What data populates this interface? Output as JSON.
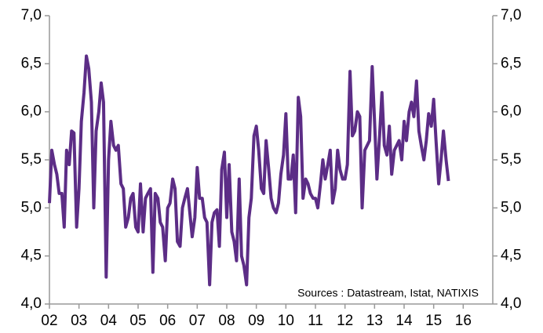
{
  "chart_data": {
    "type": "line",
    "annotation": "Sources : Datastream, Istat, NATIXIS",
    "x": [
      2002,
      2002.08,
      2002.17,
      2002.25,
      2002.33,
      2002.42,
      2002.5,
      2002.58,
      2002.67,
      2002.75,
      2002.83,
      2002.92,
      2003,
      2003.08,
      2003.17,
      2003.25,
      2003.33,
      2003.42,
      2003.5,
      2003.58,
      2003.67,
      2003.75,
      2003.83,
      2003.92,
      2004,
      2004.08,
      2004.17,
      2004.25,
      2004.33,
      2004.42,
      2004.5,
      2004.58,
      2004.67,
      2004.75,
      2004.83,
      2004.92,
      2005,
      2005.08,
      2005.17,
      2005.25,
      2005.33,
      2005.42,
      2005.5,
      2005.58,
      2005.67,
      2005.75,
      2005.83,
      2005.92,
      2006,
      2006.08,
      2006.17,
      2006.25,
      2006.33,
      2006.42,
      2006.5,
      2006.58,
      2006.67,
      2006.75,
      2006.83,
      2006.92,
      2007,
      2007.08,
      2007.17,
      2007.25,
      2007.33,
      2007.42,
      2007.5,
      2007.58,
      2007.67,
      2007.75,
      2007.83,
      2007.92,
      2008,
      2008.08,
      2008.17,
      2008.25,
      2008.33,
      2008.42,
      2008.5,
      2008.58,
      2008.67,
      2008.75,
      2008.83,
      2008.92,
      2009,
      2009.08,
      2009.17,
      2009.25,
      2009.33,
      2009.42,
      2009.5,
      2009.58,
      2009.67,
      2009.75,
      2009.83,
      2009.92,
      2010,
      2010.08,
      2010.17,
      2010.25,
      2010.33,
      2010.42,
      2010.5,
      2010.58,
      2010.67,
      2010.75,
      2010.83,
      2010.92,
      2011,
      2011.08,
      2011.17,
      2011.25,
      2011.33,
      2011.42,
      2011.5,
      2011.58,
      2011.67,
      2011.75,
      2011.83,
      2011.92,
      2012,
      2012.08,
      2012.17,
      2012.25,
      2012.33,
      2012.42,
      2012.5,
      2012.58,
      2012.67,
      2012.75,
      2012.83,
      2012.92,
      2013,
      2013.08,
      2013.17,
      2013.25,
      2013.33,
      2013.42,
      2013.5,
      2013.58,
      2013.67,
      2013.75,
      2013.83,
      2013.92,
      2014,
      2014.08,
      2014.17,
      2014.25,
      2014.33,
      2014.42,
      2014.5,
      2014.58,
      2014.67,
      2014.75,
      2014.83,
      2014.92,
      2015,
      2015.08,
      2015.17,
      2015.25,
      2015.33,
      2015.42,
      2015.5
    ],
    "series": [
      {
        "color": "#5c2d86",
        "values": [
          5.05,
          5.6,
          5.45,
          5.35,
          5.15,
          5.15,
          4.8,
          5.6,
          5.45,
          5.8,
          5.78,
          4.8,
          5.2,
          5.9,
          6.2,
          6.58,
          6.45,
          6.1,
          5.0,
          5.8,
          6.0,
          6.3,
          6.1,
          4.28,
          5.5,
          5.9,
          5.65,
          5.6,
          5.65,
          5.25,
          5.2,
          4.8,
          4.9,
          5.1,
          5.15,
          4.8,
          4.75,
          5.25,
          4.75,
          5.1,
          5.15,
          5.2,
          4.33,
          5.15,
          5.1,
          4.85,
          4.8,
          4.45,
          5.0,
          5.05,
          5.3,
          5.2,
          4.65,
          4.6,
          5.0,
          5.1,
          5.2,
          4.95,
          4.7,
          4.9,
          5.42,
          5.1,
          5.1,
          4.9,
          4.85,
          4.2,
          4.85,
          4.95,
          4.98,
          4.6,
          5.4,
          5.58,
          4.9,
          5.45,
          4.75,
          4.65,
          4.45,
          5.3,
          4.5,
          4.4,
          4.2,
          4.9,
          5.1,
          5.75,
          5.85,
          5.6,
          5.2,
          5.15,
          5.7,
          5.4,
          5.1,
          5.0,
          4.95,
          5.05,
          5.35,
          5.55,
          5.98,
          5.3,
          5.3,
          5.55,
          4.95,
          6.15,
          5.95,
          5.1,
          5.3,
          5.25,
          5.15,
          5.1,
          5.1,
          5.0,
          5.25,
          5.5,
          5.3,
          5.45,
          5.6,
          5.05,
          5.2,
          5.6,
          5.4,
          5.3,
          5.3,
          5.45,
          6.42,
          5.75,
          5.8,
          6.0,
          5.95,
          5.0,
          5.6,
          5.65,
          5.7,
          6.47,
          5.9,
          5.3,
          5.75,
          6.2,
          5.65,
          5.55,
          5.85,
          5.35,
          5.6,
          5.65,
          5.7,
          5.5,
          5.9,
          5.7,
          6.0,
          6.1,
          5.95,
          6.32,
          5.8,
          5.65,
          5.5,
          5.7,
          5.98,
          5.85,
          6.13,
          5.7,
          5.25,
          5.5,
          5.8,
          5.5,
          5.28
        ]
      }
    ],
    "xlim": [
      2002,
      2017
    ],
    "xticks": [
      {
        "value": 2002,
        "label": "02"
      },
      {
        "value": 2003,
        "label": "03"
      },
      {
        "value": 2004,
        "label": "04"
      },
      {
        "value": 2005,
        "label": "05"
      },
      {
        "value": 2006,
        "label": "06"
      },
      {
        "value": 2007,
        "label": "07"
      },
      {
        "value": 2008,
        "label": "08"
      },
      {
        "value": 2009,
        "label": "09"
      },
      {
        "value": 2010,
        "label": "10"
      },
      {
        "value": 2011,
        "label": "11"
      },
      {
        "value": 2012,
        "label": "12"
      },
      {
        "value": 2013,
        "label": "13"
      },
      {
        "value": 2014,
        "label": "14"
      },
      {
        "value": 2015,
        "label": "15"
      },
      {
        "value": 2016,
        "label": "16"
      }
    ],
    "ylim": [
      4,
      7
    ],
    "yticks": [
      {
        "value": 4,
        "label": "4,0"
      },
      {
        "value": 4.5,
        "label": "4,5"
      },
      {
        "value": 5,
        "label": "5,0"
      },
      {
        "value": 5.5,
        "label": "5,5"
      },
      {
        "value": 6,
        "label": "6,0"
      },
      {
        "value": 6.5,
        "label": "6,5"
      },
      {
        "value": 7,
        "label": "7,0"
      }
    ],
    "y2lim": [
      4,
      7
    ],
    "y2ticks": [
      {
        "value": 4,
        "label": "4,0"
      },
      {
        "value": 4.5,
        "label": "4,5"
      },
      {
        "value": 5,
        "label": "5,0"
      },
      {
        "value": 5.5,
        "label": "5,5"
      },
      {
        "value": 6,
        "label": "6,0"
      },
      {
        "value": 6.5,
        "label": "6,5"
      },
      {
        "value": 7,
        "label": "7,0"
      }
    ]
  }
}
